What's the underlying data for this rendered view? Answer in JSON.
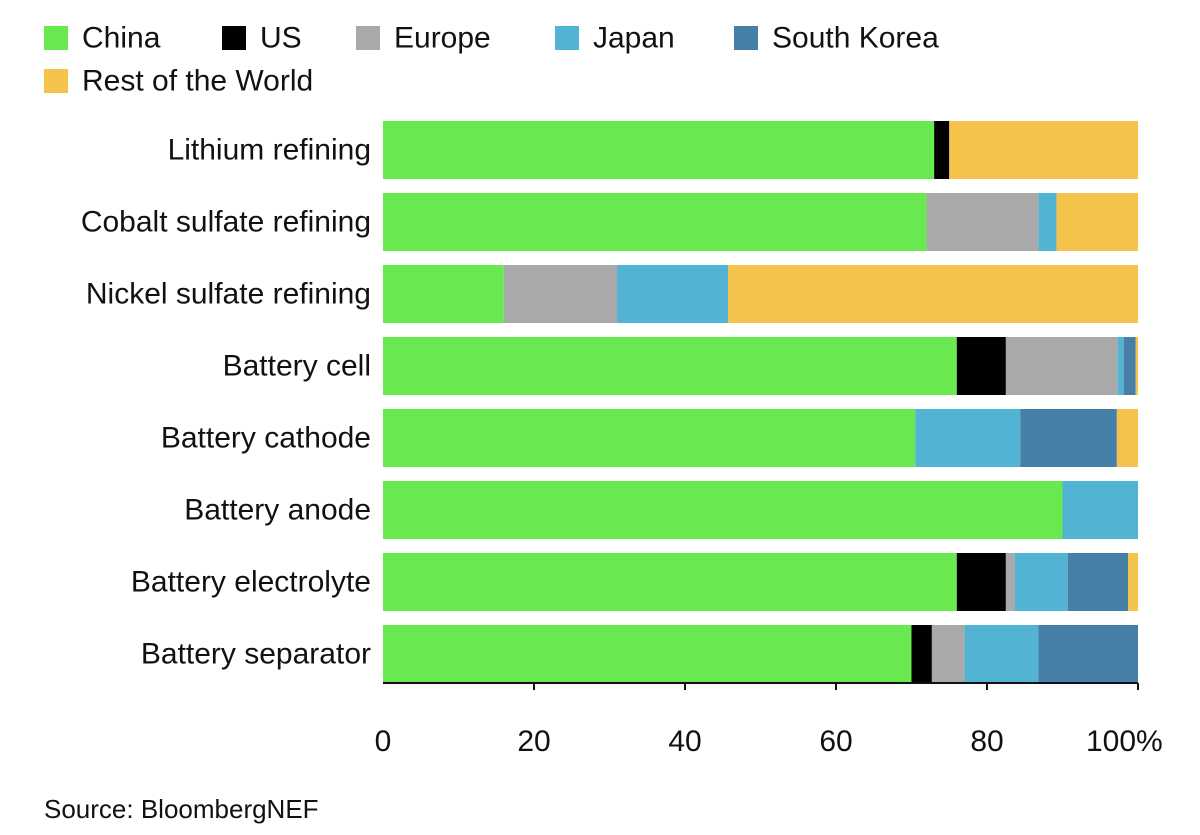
{
  "chart_data": {
    "type": "bar",
    "orientation": "horizontal",
    "stacked": true,
    "categories": [
      "Lithium refining",
      "Cobalt sulfate refining",
      "Nickel sulfate refining",
      "Battery cell",
      "Battery cathode",
      "Battery anode",
      "Battery electrolyte",
      "Battery separator"
    ],
    "series": [
      {
        "name": "China",
        "color": "#6ae84f",
        "values": [
          73,
          72,
          16,
          76,
          70.5,
          90,
          76,
          70
        ]
      },
      {
        "name": "US",
        "color": "#000000",
        "values": [
          2,
          0,
          0,
          6.5,
          0,
          0,
          6.5,
          2.7
        ]
      },
      {
        "name": "Europe",
        "color": "#a9a9a9",
        "values": [
          0,
          14.8,
          15,
          14.8,
          0,
          0,
          1.2,
          4.3
        ]
      },
      {
        "name": "Japan",
        "color": "#53b3d3",
        "values": [
          0,
          2.4,
          14.7,
          0.8,
          13.9,
          10,
          7,
          9.8
        ]
      },
      {
        "name": "South Korea",
        "color": "#4680a6",
        "values": [
          0,
          0,
          0,
          1.6,
          12.8,
          0,
          8,
          13.2
        ]
      },
      {
        "name": "Rest of the World",
        "color": "#f5c24c",
        "values": [
          25,
          10.8,
          54.3,
          0.3,
          2.8,
          0,
          1.3,
          0
        ]
      }
    ],
    "xlim": [
      0,
      100
    ],
    "xticks": [
      0,
      20,
      40,
      60,
      80,
      100
    ],
    "xtick_labels": [
      "0",
      "20",
      "40",
      "60",
      "80",
      "100%"
    ],
    "legend_position": "top-left",
    "grid": false,
    "source": "Source: BloombergNEF"
  }
}
